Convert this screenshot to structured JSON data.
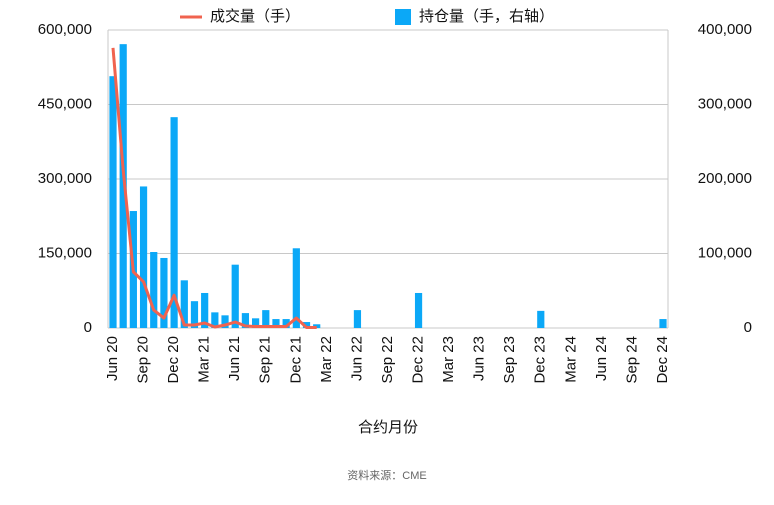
{
  "chart_data": {
    "type": "bar-line",
    "xlabel": "合约月份",
    "source": "资料来源：CME",
    "categories": [
      "Jun 20",
      null,
      null,
      "Sep 20",
      null,
      null,
      "Dec 20",
      null,
      null,
      "Mar 21",
      null,
      null,
      "Jun 21",
      null,
      null,
      "Sep 21",
      null,
      null,
      "Dec 21",
      null,
      null,
      "Mar 22",
      null,
      null,
      "Jun 22",
      null,
      null,
      "Sep 22",
      null,
      null,
      "Dec 22",
      null,
      null,
      "Mar 23",
      null,
      null,
      "Jun 23",
      null,
      null,
      "Sep 23",
      null,
      null,
      "Dec 23",
      null,
      null,
      "Mar 24",
      null,
      null,
      "Jun 24",
      null,
      null,
      "Sep 24",
      null,
      null,
      "Dec 24"
    ],
    "series": [
      {
        "name": "成交量（手）",
        "type": "line",
        "axis": "y",
        "color": "#f0634f",
        "values": [
          564000,
          318000,
          113000,
          93000,
          36000,
          20000,
          66000,
          6000,
          6000,
          10000,
          2000,
          6000,
          12000,
          4000,
          3000,
          3000,
          3000,
          3000,
          20000,
          1000,
          1000,
          null,
          null,
          null,
          null,
          null,
          null,
          null,
          null,
          null,
          null,
          null,
          null,
          null,
          null,
          null,
          null,
          null,
          null,
          null,
          null,
          null,
          null,
          null,
          null,
          null,
          null,
          null,
          null,
          null,
          null,
          null,
          null,
          null,
          null
        ]
      },
      {
        "name": "持仓量（手，右轴）",
        "type": "bar",
        "axis": "y2",
        "color": "#0ba8f7",
        "values": [
          338000,
          381000,
          157000,
          190000,
          102000,
          94000,
          283000,
          64000,
          36000,
          47000,
          21000,
          17000,
          85000,
          20000,
          13000,
          24000,
          12000,
          12000,
          107000,
          8000,
          5000,
          null,
          null,
          null,
          24000,
          null,
          null,
          null,
          null,
          null,
          47000,
          null,
          null,
          null,
          null,
          null,
          null,
          null,
          null,
          null,
          null,
          null,
          23000,
          null,
          null,
          null,
          null,
          null,
          null,
          null,
          null,
          null,
          null,
          null,
          12000
        ]
      }
    ],
    "ylim": [
      0,
      600000
    ],
    "yticks": [
      0,
      {
        "value": 150000,
        "label": "150,000"
      },
      {
        "value": 300000,
        "label": "300,000"
      },
      {
        "value": 450000,
        "label": "450,000"
      },
      {
        "value": 600000,
        "label": "600,000"
      }
    ],
    "y2lim": [
      0,
      400000
    ],
    "y2ticks": [
      0,
      {
        "value": 100000,
        "label": "100,000"
      },
      {
        "value": 200000,
        "label": "200,000"
      },
      {
        "value": 300000,
        "label": "300,000"
      },
      {
        "value": 400000,
        "label": "400,000"
      }
    ],
    "grid": true
  }
}
